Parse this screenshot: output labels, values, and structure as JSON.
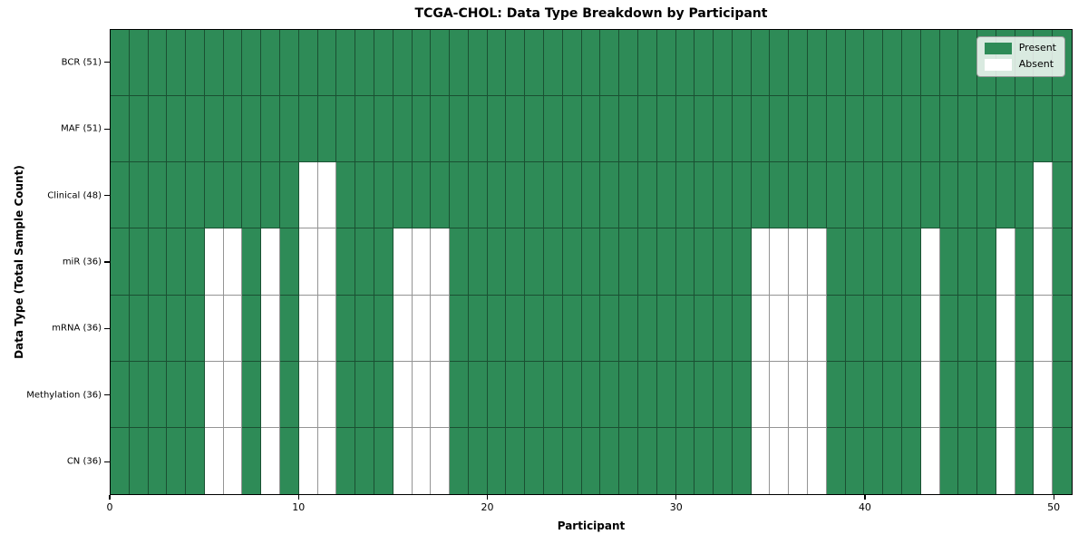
{
  "chart_data": {
    "type": "heatmap",
    "title": "TCGA-CHOL: Data Type Breakdown by Participant",
    "xlabel": "Participant",
    "ylabel": "Data Type (Total Sample Count)",
    "n_participants": 51,
    "x_ticks": [
      0,
      10,
      20,
      30,
      40,
      50
    ],
    "xlim": [
      0,
      51
    ],
    "grid": true,
    "rows": [
      {
        "label": "BCR (51)",
        "present_count": 51,
        "absent_participants": []
      },
      {
        "label": "MAF (51)",
        "present_count": 51,
        "absent_participants": []
      },
      {
        "label": "Clinical (48)",
        "present_count": 48,
        "absent_participants": [
          10,
          11,
          49
        ]
      },
      {
        "label": "miR (36)",
        "present_count": 36,
        "absent_participants": [
          5,
          6,
          8,
          10,
          11,
          15,
          16,
          17,
          34,
          35,
          36,
          37,
          43,
          47,
          49
        ]
      },
      {
        "label": "mRNA (36)",
        "present_count": 36,
        "absent_participants": [
          5,
          6,
          8,
          10,
          11,
          15,
          16,
          17,
          34,
          35,
          36,
          37,
          43,
          47,
          49
        ]
      },
      {
        "label": "Methylation (36)",
        "present_count": 36,
        "absent_participants": [
          5,
          6,
          8,
          10,
          11,
          15,
          16,
          17,
          34,
          35,
          36,
          37,
          43,
          47,
          49
        ]
      },
      {
        "label": "CN (36)",
        "present_count": 36,
        "absent_participants": [
          5,
          6,
          8,
          10,
          11,
          15,
          16,
          17,
          34,
          35,
          36,
          37,
          43,
          47,
          49
        ]
      }
    ],
    "legend": {
      "position": "upper right",
      "entries": [
        {
          "label": "Present",
          "color": "#2e8b57"
        },
        {
          "label": "Absent",
          "color": "#ffffff"
        }
      ]
    },
    "colors": {
      "present": "#2e8b57",
      "absent": "#ffffff",
      "cell_edge": "rgba(0,0,0,0.42)",
      "axis": "#000000",
      "background": "#ffffff"
    }
  }
}
